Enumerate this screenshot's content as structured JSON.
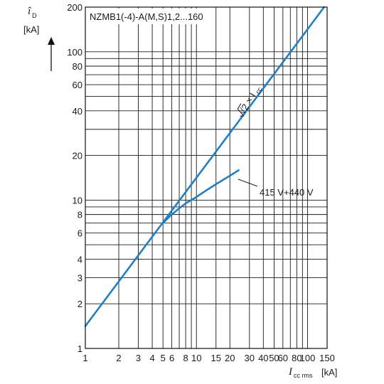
{
  "chart_data": {
    "type": "line",
    "title": "NZMB1(-4)-A(M,S)1,2...160",
    "x_scale": "log",
    "y_scale": "log",
    "xlim": [
      1,
      150
    ],
    "ylim": [
      1,
      200
    ],
    "grid": true,
    "ylabel": {
      "symbol": "î",
      "sub": "D",
      "unit": "[kA]"
    },
    "xlabel": {
      "symbol": "I",
      "sub": "cc rms",
      "unit": "[kA]"
    },
    "x_ticks": [
      {
        "v": 1,
        "t": "1"
      },
      {
        "v": 2,
        "t": "2"
      },
      {
        "v": 3,
        "t": "3"
      },
      {
        "v": 4,
        "t": "4"
      },
      {
        "v": 5,
        "t": "5"
      },
      {
        "v": 6,
        "t": "6"
      },
      {
        "v": 8,
        "t": "8"
      },
      {
        "v": 10,
        "t": "10"
      },
      {
        "v": 15,
        "t": "15"
      },
      {
        "v": 20,
        "t": "20"
      },
      {
        "v": 30,
        "t": "30"
      },
      {
        "v": 40,
        "t": "40"
      },
      {
        "v": 50,
        "t": "50"
      },
      {
        "v": 60,
        "t": "60"
      },
      {
        "v": 80,
        "t": "80"
      },
      {
        "v": 100,
        "t": "100"
      },
      {
        "v": 150,
        "t": "150"
      }
    ],
    "x_grid": [
      1,
      2,
      3,
      4,
      5,
      6,
      7,
      8,
      9,
      10,
      15,
      20,
      30,
      40,
      50,
      60,
      70,
      80,
      90,
      100,
      150
    ],
    "y_ticks": [
      {
        "v": 1,
        "t": "1"
      },
      {
        "v": 2,
        "t": "2"
      },
      {
        "v": 3,
        "t": "3"
      },
      {
        "v": 4,
        "t": "4"
      },
      {
        "v": 6,
        "t": "6"
      },
      {
        "v": 8,
        "t": "8"
      },
      {
        "v": 10,
        "t": "10"
      },
      {
        "v": 20,
        "t": "20"
      },
      {
        "v": 40,
        "t": "40"
      },
      {
        "v": 60,
        "t": "60"
      },
      {
        "v": 80,
        "t": "80"
      },
      {
        "v": 100,
        "t": "100"
      },
      {
        "v": 200,
        "t": "200"
      }
    ],
    "y_grid": [
      1,
      2,
      3,
      4,
      5,
      6,
      7,
      8,
      9,
      10,
      20,
      30,
      40,
      50,
      60,
      70,
      80,
      90,
      100,
      200
    ],
    "series": [
      {
        "name": "√2 × I",
        "name_sub": "cc",
        "color": "#1f7fc4",
        "points": [
          [
            1,
            1.414
          ],
          [
            141,
            200
          ]
        ]
      },
      {
        "name": "415 V+440 V",
        "color": "#1f7fc4",
        "points": [
          [
            4.9,
            6.9
          ],
          [
            6,
            8.0
          ],
          [
            7,
            8.8
          ],
          [
            8,
            9.5
          ],
          [
            10,
            10.5
          ],
          [
            12,
            11.5
          ],
          [
            15,
            12.8
          ],
          [
            20,
            14.6
          ],
          [
            24,
            15.9
          ]
        ]
      }
    ]
  }
}
